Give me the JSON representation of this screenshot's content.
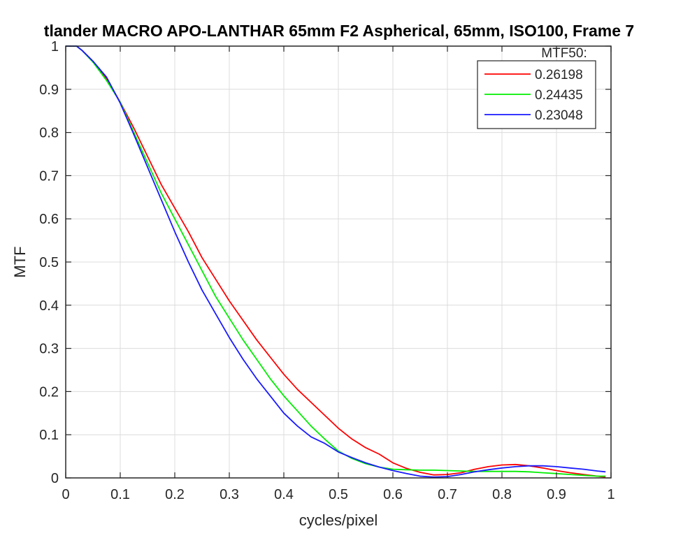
{
  "chart_data": {
    "type": "line",
    "title": "tlander MACRO APO-LANTHAR 65mm F2 Aspherical, 65mm, ISO100, Frame 7",
    "xlabel": "cycles/pixel",
    "ylabel": "MTF",
    "xlim": [
      0,
      1
    ],
    "ylim": [
      0,
      1
    ],
    "xticks": [
      "0",
      "0.1",
      "0.2",
      "0.3",
      "0.4",
      "0.5",
      "0.6",
      "0.7",
      "0.8",
      "0.9",
      "1"
    ],
    "yticks": [
      "0",
      "0.1",
      "0.2",
      "0.3",
      "0.4",
      "0.5",
      "0.6",
      "0.7",
      "0.8",
      "0.9",
      "1"
    ],
    "grid": true,
    "legend_position": "top-right",
    "legend_title": "MTF50:",
    "series": [
      {
        "name": "0.26198",
        "color": "#ff0000",
        "points": [
          [
            0,
            1.0
          ],
          [
            0.02,
            1.0
          ],
          [
            0.03,
            0.99
          ],
          [
            0.05,
            0.965
          ],
          [
            0.075,
            0.925
          ],
          [
            0.1,
            0.87
          ],
          [
            0.125,
            0.81
          ],
          [
            0.15,
            0.745
          ],
          [
            0.175,
            0.68
          ],
          [
            0.2,
            0.625
          ],
          [
            0.225,
            0.57
          ],
          [
            0.25,
            0.51
          ],
          [
            0.275,
            0.46
          ],
          [
            0.3,
            0.41
          ],
          [
            0.325,
            0.365
          ],
          [
            0.35,
            0.32
          ],
          [
            0.375,
            0.28
          ],
          [
            0.4,
            0.24
          ],
          [
            0.425,
            0.205
          ],
          [
            0.45,
            0.175
          ],
          [
            0.475,
            0.145
          ],
          [
            0.5,
            0.115
          ],
          [
            0.525,
            0.09
          ],
          [
            0.55,
            0.07
          ],
          [
            0.575,
            0.055
          ],
          [
            0.6,
            0.035
          ],
          [
            0.625,
            0.022
          ],
          [
            0.65,
            0.013
          ],
          [
            0.675,
            0.007
          ],
          [
            0.7,
            0.008
          ],
          [
            0.725,
            0.012
          ],
          [
            0.75,
            0.02
          ],
          [
            0.775,
            0.026
          ],
          [
            0.8,
            0.03
          ],
          [
            0.825,
            0.031
          ],
          [
            0.85,
            0.028
          ],
          [
            0.875,
            0.023
          ],
          [
            0.9,
            0.017
          ],
          [
            0.925,
            0.012
          ],
          [
            0.95,
            0.008
          ],
          [
            0.975,
            0.004
          ],
          [
            0.99,
            0.002
          ]
        ]
      },
      {
        "name": "0.24435",
        "color": "#00ee00",
        "points": [
          [
            0,
            1.0
          ],
          [
            0.02,
            1.0
          ],
          [
            0.03,
            0.99
          ],
          [
            0.05,
            0.963
          ],
          [
            0.075,
            0.92
          ],
          [
            0.1,
            0.87
          ],
          [
            0.125,
            0.8
          ],
          [
            0.15,
            0.73
          ],
          [
            0.175,
            0.66
          ],
          [
            0.2,
            0.6
          ],
          [
            0.225,
            0.54
          ],
          [
            0.25,
            0.48
          ],
          [
            0.275,
            0.42
          ],
          [
            0.3,
            0.37
          ],
          [
            0.325,
            0.32
          ],
          [
            0.35,
            0.275
          ],
          [
            0.375,
            0.23
          ],
          [
            0.4,
            0.19
          ],
          [
            0.425,
            0.155
          ],
          [
            0.45,
            0.12
          ],
          [
            0.475,
            0.09
          ],
          [
            0.5,
            0.062
          ],
          [
            0.525,
            0.045
          ],
          [
            0.55,
            0.033
          ],
          [
            0.575,
            0.025
          ],
          [
            0.6,
            0.02
          ],
          [
            0.625,
            0.019
          ],
          [
            0.65,
            0.018
          ],
          [
            0.675,
            0.018
          ],
          [
            0.7,
            0.017
          ],
          [
            0.725,
            0.016
          ],
          [
            0.75,
            0.015
          ],
          [
            0.775,
            0.015
          ],
          [
            0.8,
            0.015
          ],
          [
            0.825,
            0.015
          ],
          [
            0.85,
            0.014
          ],
          [
            0.875,
            0.012
          ],
          [
            0.9,
            0.01
          ],
          [
            0.925,
            0.008
          ],
          [
            0.95,
            0.006
          ],
          [
            0.975,
            0.004
          ],
          [
            0.99,
            0.004
          ]
        ]
      },
      {
        "name": "0.23048",
        "color": "#1a1aff",
        "points": [
          [
            0,
            1.0
          ],
          [
            0.02,
            1.0
          ],
          [
            0.03,
            0.99
          ],
          [
            0.05,
            0.965
          ],
          [
            0.075,
            0.928
          ],
          [
            0.1,
            0.868
          ],
          [
            0.125,
            0.795
          ],
          [
            0.15,
            0.72
          ],
          [
            0.175,
            0.645
          ],
          [
            0.2,
            0.57
          ],
          [
            0.225,
            0.5
          ],
          [
            0.25,
            0.435
          ],
          [
            0.275,
            0.38
          ],
          [
            0.3,
            0.325
          ],
          [
            0.325,
            0.275
          ],
          [
            0.35,
            0.23
          ],
          [
            0.375,
            0.19
          ],
          [
            0.4,
            0.15
          ],
          [
            0.425,
            0.12
          ],
          [
            0.45,
            0.095
          ],
          [
            0.475,
            0.08
          ],
          [
            0.5,
            0.06
          ],
          [
            0.525,
            0.047
          ],
          [
            0.55,
            0.035
          ],
          [
            0.575,
            0.025
          ],
          [
            0.6,
            0.017
          ],
          [
            0.625,
            0.01
          ],
          [
            0.65,
            0.004
          ],
          [
            0.675,
            0.002
          ],
          [
            0.7,
            0.003
          ],
          [
            0.725,
            0.008
          ],
          [
            0.75,
            0.014
          ],
          [
            0.775,
            0.019
          ],
          [
            0.8,
            0.023
          ],
          [
            0.825,
            0.026
          ],
          [
            0.85,
            0.028
          ],
          [
            0.875,
            0.028
          ],
          [
            0.9,
            0.026
          ],
          [
            0.925,
            0.023
          ],
          [
            0.95,
            0.02
          ],
          [
            0.975,
            0.016
          ],
          [
            0.99,
            0.014
          ]
        ]
      }
    ]
  }
}
